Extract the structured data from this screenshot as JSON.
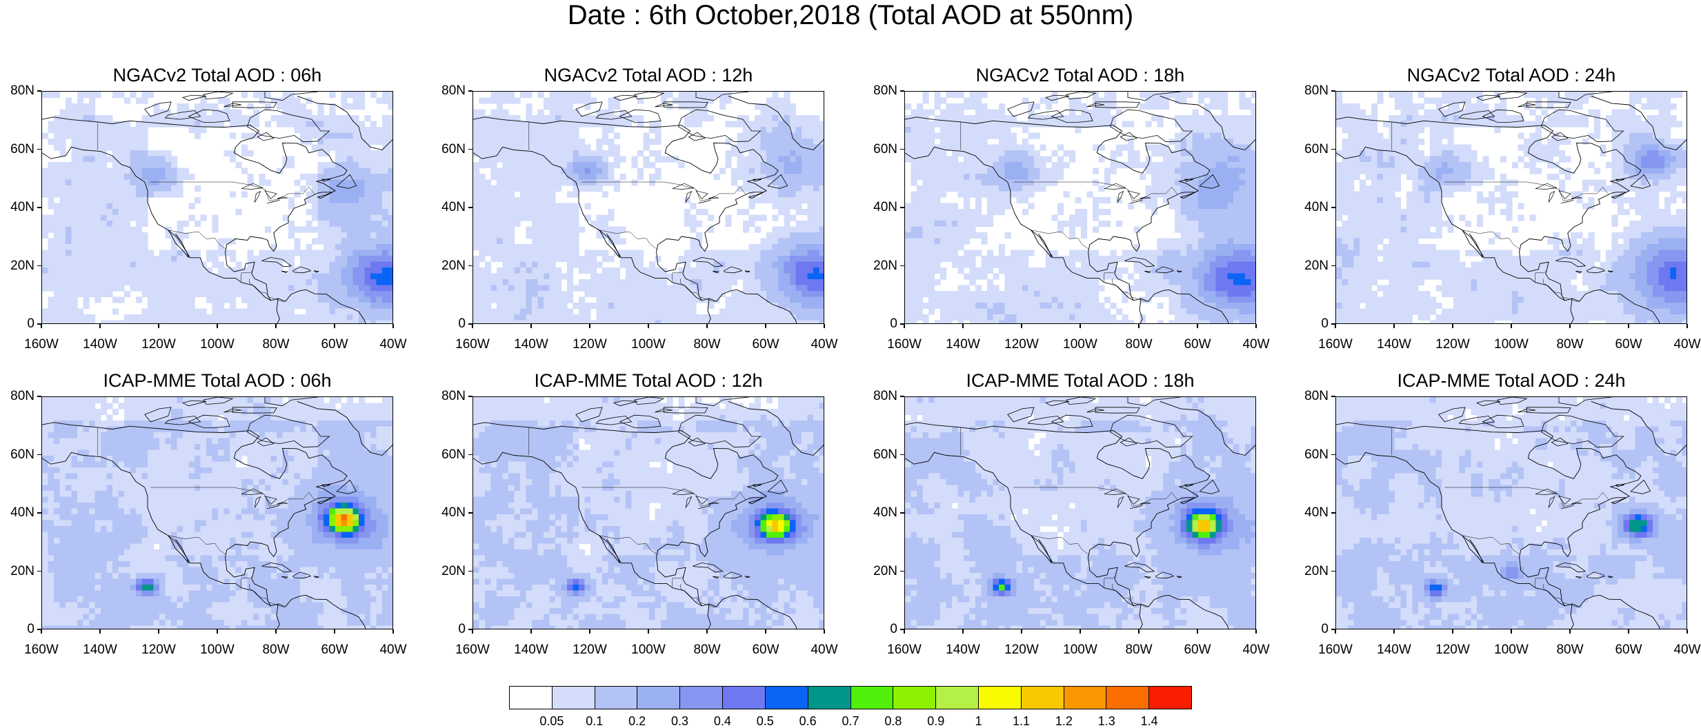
{
  "title": "Date : 6th October,2018 (Total AOD at 550nm)",
  "axes": {
    "lat_ticks": [
      "80N",
      "60N",
      "40N",
      "20N",
      "0"
    ],
    "lon_ticks": [
      "160W",
      "140W",
      "120W",
      "100W",
      "80W",
      "60W",
      "40W"
    ],
    "lon_range": [
      -160,
      -40
    ],
    "lat_range": [
      0,
      80
    ]
  },
  "panels": [
    {
      "title": "NGACv2 Total AOD : 06h",
      "model": "NGACv2",
      "hour": "06h"
    },
    {
      "title": "NGACv2 Total AOD : 12h",
      "model": "NGACv2",
      "hour": "12h"
    },
    {
      "title": "NGACv2 Total AOD : 18h",
      "model": "NGACv2",
      "hour": "18h"
    },
    {
      "title": "NGACv2 Total AOD : 24h",
      "model": "NGACv2",
      "hour": "24h"
    },
    {
      "title": "ICAP-MME Total AOD : 06h",
      "model": "ICAP-MME",
      "hour": "06h"
    },
    {
      "title": "ICAP-MME Total AOD : 12h",
      "model": "ICAP-MME",
      "hour": "12h"
    },
    {
      "title": "ICAP-MME Total AOD : 18h",
      "model": "ICAP-MME",
      "hour": "18h"
    },
    {
      "title": "ICAP-MME Total AOD : 24h",
      "model": "ICAP-MME",
      "hour": "24h"
    }
  ],
  "colorbar": {
    "labels": [
      "0.05",
      "0.1",
      "0.2",
      "0.3",
      "0.4",
      "0.5",
      "0.6",
      "0.7",
      "0.8",
      "0.9",
      "1",
      "1.1",
      "1.2",
      "1.3",
      "1.4"
    ],
    "colors": [
      "#ffffff",
      "#d3dcfa",
      "#b4c3f5",
      "#9bb0f2",
      "#8796f0",
      "#6e78f0",
      "#0a64f5",
      "#00968c",
      "#50f00a",
      "#8cf000",
      "#b4f046",
      "#fafa00",
      "#fac800",
      "#fa9600",
      "#fa6e00",
      "#fa1e00"
    ]
  }
}
